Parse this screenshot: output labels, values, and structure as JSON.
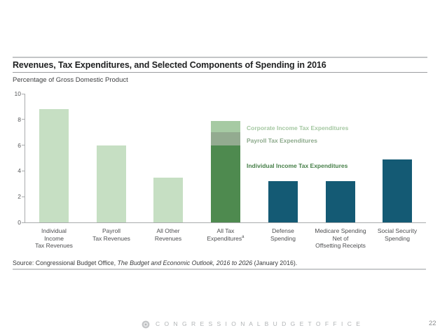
{
  "slide": {
    "title": "Revenues, Tax Expenditures, and Selected Components of Spending in 2016",
    "subtitle": "Percentage of Gross Domestic Product",
    "source_prefix": "Source: Congressional Budget Office, ",
    "source_italic": "The Budget and Economic Outlook, 2016 to 2026",
    "source_suffix": " (January 2016).",
    "footer_text": "C O N G R E S S I O N A L   B U D G E T   O F F I C E",
    "page_number": "22"
  },
  "chart_data": {
    "type": "bar",
    "title": "Revenues, Tax Expenditures, and Selected Components of Spending in 2016",
    "ylabel": "Percentage of Gross Domestic Product",
    "xlabel": "",
    "ylim": [
      0,
      10
    ],
    "yticks": [
      0,
      2,
      4,
      6,
      8,
      10
    ],
    "grid": false,
    "legend_position": "right-of-stacked-bar",
    "categories": [
      "Individual Income Tax Revenues",
      "Payroll Tax Revenues",
      "All Other Revenues",
      "All Tax Expenditures",
      "Defense Spending",
      "Medicare Spending Net of Offsetting Receipts",
      "Social Security Spending"
    ],
    "bars": [
      {
        "category": "Individual Income Tax Revenues",
        "label_lines": [
          "Individual",
          "Income",
          "Tax Revenues"
        ],
        "value": 8.8,
        "color_key": "light_green"
      },
      {
        "category": "Payroll Tax Revenues",
        "label_lines": [
          "Payroll",
          "Tax Revenues"
        ],
        "value": 6.0,
        "color_key": "light_green"
      },
      {
        "category": "All Other Revenues",
        "label_lines": [
          "All Other",
          "Revenues"
        ],
        "value": 3.5,
        "color_key": "light_green"
      },
      {
        "category": "All Tax Expenditures",
        "label_lines": [
          "All Tax",
          "Expenditures"
        ],
        "label_superscript": "a",
        "segments": [
          {
            "name": "Individual Income Tax Expenditures",
            "value": 6.0,
            "color_key": "dark_green"
          },
          {
            "name": "Payroll Tax Expenditures",
            "value": 1.0,
            "color_key": "gray_green"
          },
          {
            "name": "Corporate Income Tax Expenditures",
            "value": 0.9,
            "color_key": "mid_green"
          }
        ]
      },
      {
        "category": "Defense Spending",
        "label_lines": [
          "Defense",
          "Spending"
        ],
        "value": 3.2,
        "color_key": "teal"
      },
      {
        "category": "Medicare Spending Net of Offsetting Receipts",
        "label_lines": [
          "Medicare Spending",
          "Net of",
          "Offsetting Receipts"
        ],
        "value": 3.2,
        "color_key": "teal"
      },
      {
        "category": "Social Security Spending",
        "label_lines": [
          "Social Security",
          "Spending"
        ],
        "value": 4.9,
        "color_key": "teal"
      }
    ],
    "annotations": [
      {
        "text": "Corporate Income Tax Expenditures",
        "color_key": "mid_green_text"
      },
      {
        "text": "Payroll Tax Expenditures",
        "color_key": "gray_green_text"
      },
      {
        "text": "Individual Income Tax Expenditures",
        "color_key": "dark_green_text"
      }
    ],
    "colors": {
      "light_green": "#c6dfc3",
      "mid_green": "#a6caa3",
      "gray_green": "#93ab90",
      "dark_green": "#4e8a4f",
      "teal": "#145a74",
      "mid_green_text": "#a5c8a2",
      "gray_green_text": "#8ca98b",
      "dark_green_text": "#467f48"
    }
  }
}
